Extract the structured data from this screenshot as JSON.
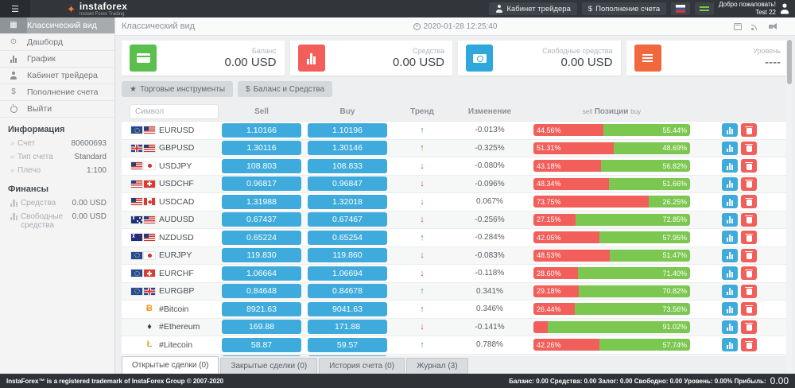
{
  "colors": {
    "accent_blue": "#3fabdc",
    "bar_red": "#f25f5b",
    "bar_green": "#7cc750",
    "header_dark": "#32363b"
  },
  "header": {
    "logo_name": "instaforex",
    "logo_tagline": "Instant Forex Trading",
    "trader_cabinet_label": "Кабинет трейдера",
    "deposit_label": "Пополнение счета",
    "welcome_line1": "Добро пожаловать!",
    "welcome_line2": "Test 22"
  },
  "sidebar": {
    "items": [
      {
        "label": "Классический вид",
        "icon": "classic-view-icon",
        "active": true
      },
      {
        "label": "Дашборд",
        "icon": "dashboard-icon",
        "active": false
      },
      {
        "label": "График",
        "icon": "chart-icon",
        "active": false
      },
      {
        "label": "Кабинет трейдера",
        "icon": "person-icon",
        "active": false
      },
      {
        "label": "Пополнение счета",
        "icon": "dollar-icon",
        "active": false
      },
      {
        "label": "Выйти",
        "icon": "power-icon",
        "active": false
      }
    ],
    "info_title": "Информация",
    "info": [
      {
        "label": "Счет",
        "value": "80600693"
      },
      {
        "label": "Тип счета",
        "value": "Standard"
      },
      {
        "label": "Плечо",
        "value": "1:100"
      }
    ],
    "finance_title": "Финансы",
    "finance": [
      {
        "label": "Средства",
        "value": "0.00 USD"
      },
      {
        "label": "Свободные средства",
        "value": "0.00 USD"
      }
    ]
  },
  "topbar": {
    "title": "Классический вид",
    "datetime": "2020-01-28 12:25:40"
  },
  "cards": [
    {
      "label": "Баланс",
      "value": "0.00 USD",
      "color": "#5bbf4e",
      "icon": "credit-card-icon"
    },
    {
      "label": "Средства",
      "value": "0.00 USD",
      "color": "#f25f5b",
      "icon": "bar-chart-icon"
    },
    {
      "label": "Свободные средства",
      "value": "0.00 USD",
      "color": "#2ea7dd",
      "icon": "banknote-icon"
    },
    {
      "label": "Уровень",
      "value": "----",
      "color": "#f2683e",
      "icon": "menu-icon"
    }
  ],
  "toolbar": {
    "instruments_label": "Торговые инструменты",
    "balance_label": "Баланс и Средства"
  },
  "table": {
    "search_placeholder": "Символ",
    "columns": {
      "sell": "Sell",
      "buy": "Buy",
      "trend": "Тренд",
      "change": "Изменение",
      "positions_sell": "sell",
      "positions": "Позиции",
      "positions_buy": "buy"
    },
    "rows": [
      {
        "symbol": "EURUSD",
        "flags": [
          "eu",
          "us"
        ],
        "sell": "1.10166",
        "buy": "1.10196",
        "trend": "up",
        "change": "-0.013%",
        "sell_pct": 44.56,
        "buy_pct": 55.44,
        "sell_label": "44.56%",
        "buy_label": "55.44%"
      },
      {
        "symbol": "GBPUSD",
        "flags": [
          "gb",
          "us"
        ],
        "sell": "1.30116",
        "buy": "1.30146",
        "trend": "up",
        "change": "-0.325%",
        "sell_pct": 51.31,
        "buy_pct": 48.69,
        "sell_label": "51.31%",
        "buy_label": "48.69%"
      },
      {
        "symbol": "USDJPY",
        "flags": [
          "us",
          "jp"
        ],
        "sell": "108.803",
        "buy": "108.833",
        "trend": "down",
        "change": "-0.080%",
        "sell_pct": 43.18,
        "buy_pct": 56.82,
        "sell_label": "43.18%",
        "buy_label": "56.82%"
      },
      {
        "symbol": "USDCHF",
        "flags": [
          "us",
          "ch"
        ],
        "sell": "0.96817",
        "buy": "0.96847",
        "trend": "down",
        "change": "-0.096%",
        "sell_pct": 48.34,
        "buy_pct": 51.66,
        "sell_label": "48.34%",
        "buy_label": "51.66%"
      },
      {
        "symbol": "USDCAD",
        "flags": [
          "us",
          "ca"
        ],
        "sell": "1.31988",
        "buy": "1.32018",
        "trend": "down",
        "change": "0.067%",
        "sell_pct": 73.75,
        "buy_pct": 26.25,
        "sell_label": "73.75%",
        "buy_label": "26.25%"
      },
      {
        "symbol": "AUDUSD",
        "flags": [
          "au",
          "us"
        ],
        "sell": "0.67437",
        "buy": "0.67467",
        "trend": "down",
        "change": "-0.256%",
        "sell_pct": 27.15,
        "buy_pct": 72.85,
        "sell_label": "27.15%",
        "buy_label": "72.85%"
      },
      {
        "symbol": "NZDUSD",
        "flags": [
          "nz",
          "us"
        ],
        "sell": "0.65224",
        "buy": "0.65254",
        "trend": "up",
        "change": "-0.284%",
        "sell_pct": 42.05,
        "buy_pct": 57.95,
        "sell_label": "42.05%",
        "buy_label": "57.95%"
      },
      {
        "symbol": "EURJPY",
        "flags": [
          "eu",
          "jp"
        ],
        "sell": "119.830",
        "buy": "119.860",
        "trend": "down",
        "change": "-0.083%",
        "sell_pct": 48.53,
        "buy_pct": 51.47,
        "sell_label": "48.53%",
        "buy_label": "51.47%"
      },
      {
        "symbol": "EURCHF",
        "flags": [
          "eu",
          "ch"
        ],
        "sell": "1.06664",
        "buy": "1.06694",
        "trend": "down",
        "change": "-0.118%",
        "sell_pct": 28.6,
        "buy_pct": 71.4,
        "sell_label": "28.60%",
        "buy_label": "71.40%"
      },
      {
        "symbol": "EURGBP",
        "flags": [
          "eu",
          "gb"
        ],
        "sell": "0.84648",
        "buy": "0.84678",
        "trend": "up",
        "change": "0.341%",
        "sell_pct": 29.18,
        "buy_pct": 70.82,
        "sell_label": "29.18%",
        "buy_label": "70.82%"
      },
      {
        "symbol": "#Bitcoin",
        "crypto": "Ƀ",
        "crypto_color": "#f7931a",
        "sell": "8921.63",
        "buy": "9041.63",
        "trend": "up",
        "change": "0.346%",
        "sell_pct": 26.44,
        "buy_pct": 73.56,
        "sell_label": "26.44%",
        "buy_label": "73.56%"
      },
      {
        "symbol": "#Ethereum",
        "crypto": "♦",
        "crypto_color": "#3c3c3d",
        "sell": "169.88",
        "buy": "171.88",
        "trend": "down",
        "change": "-0.141%",
        "sell_pct": 8.98,
        "buy_pct": 91.02,
        "sell_label": "",
        "buy_label": "91.02%"
      },
      {
        "symbol": "#Litecoin",
        "crypto": "Ł",
        "crypto_color": "#d4af37",
        "sell": "58.87",
        "buy": "59.57",
        "trend": "up",
        "change": "0.788%",
        "sell_pct": 42.26,
        "buy_pct": 57.74,
        "sell_label": "42.26%",
        "buy_label": "57.74%"
      },
      {
        "symbol": "",
        "flags": [],
        "sell": "",
        "buy": "",
        "trend": "",
        "change": "",
        "sell_pct": 3,
        "buy_pct": 97,
        "sell_label": "",
        "buy_label": ""
      }
    ]
  },
  "tabs": [
    {
      "label": "Открытые сделки (0)",
      "active": true
    },
    {
      "label": "Закрытые сделки (0)",
      "active": false
    },
    {
      "label": "История счета (0)",
      "active": false
    },
    {
      "label": "Журнал (3)",
      "active": false
    }
  ],
  "footer": {
    "left": "InstaForex™ is a registered trademark of InstaForex Group © 2007-2020",
    "stats_text": "Баланс: 0.00 Средства: 0.00 Залог: 0.00 Свободно: 0.00 Уровень: 0.00% Прибыль:",
    "profit": "0.00"
  }
}
